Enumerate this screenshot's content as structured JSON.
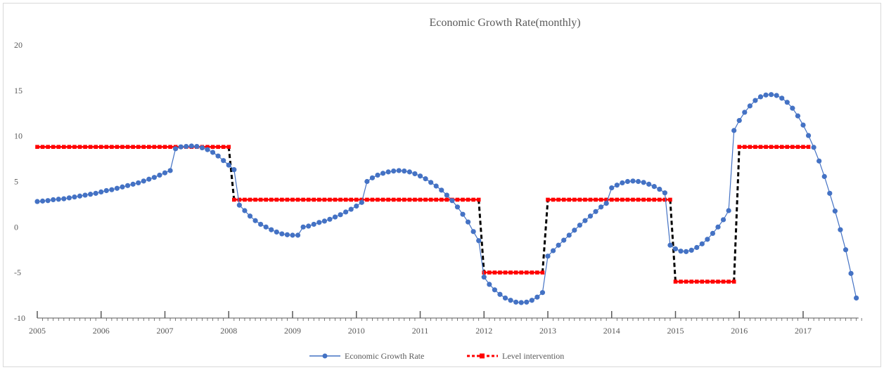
{
  "chart_data": {
    "type": "line",
    "title": "Economic Growth Rate(monthly)",
    "xlabel": "",
    "ylabel": "",
    "ylim": [
      -10,
      20
    ],
    "yticks": [
      20,
      15,
      10,
      5,
      0,
      -5,
      -10
    ],
    "xtick_labels": [
      "2005",
      "2006",
      "2007",
      "2008",
      "2009",
      "2010",
      "2011",
      "2012",
      "2013",
      "2014",
      "2015",
      "2016",
      "2017"
    ],
    "xlim": [
      2005.0,
      2018.0
    ],
    "grid": false,
    "legend_position": "bottom",
    "series": [
      {
        "name": "Economic Growth Rate",
        "color": "#4472C4",
        "marker": "circle",
        "values": [
          2.8,
          2.85,
          2.9,
          3.0,
          3.05,
          3.1,
          3.2,
          3.3,
          3.4,
          3.5,
          3.6,
          3.7,
          3.85,
          4.0,
          4.1,
          4.25,
          4.4,
          4.55,
          4.7,
          4.85,
          5.05,
          5.25,
          5.45,
          5.7,
          5.95,
          6.2,
          8.6,
          8.8,
          8.85,
          8.9,
          8.85,
          8.7,
          8.5,
          8.2,
          7.8,
          7.3,
          6.8,
          6.3,
          2.4,
          1.8,
          1.2,
          0.7,
          0.3,
          0.0,
          -0.3,
          -0.55,
          -0.75,
          -0.85,
          -0.9,
          -0.9,
          0.0,
          0.1,
          0.3,
          0.5,
          0.65,
          0.85,
          1.1,
          1.35,
          1.65,
          1.95,
          2.3,
          2.7,
          5.0,
          5.4,
          5.7,
          5.9,
          6.05,
          6.15,
          6.2,
          6.15,
          6.05,
          5.85,
          5.6,
          5.3,
          4.9,
          4.5,
          4.05,
          3.5,
          2.9,
          2.2,
          1.4,
          0.55,
          -0.5,
          -1.5,
          -5.5,
          -6.3,
          -6.9,
          -7.4,
          -7.8,
          -8.05,
          -8.25,
          -8.3,
          -8.25,
          -8.05,
          -7.7,
          -7.2,
          -3.2,
          -2.6,
          -2.0,
          -1.45,
          -0.9,
          -0.35,
          0.2,
          0.7,
          1.2,
          1.7,
          2.2,
          2.6,
          4.3,
          4.6,
          4.85,
          5.0,
          5.05,
          5.0,
          4.9,
          4.7,
          4.45,
          4.15,
          3.75,
          -2.0,
          -2.4,
          -2.65,
          -2.7,
          -2.55,
          -2.25,
          -1.85,
          -1.35,
          -0.7,
          0.0,
          0.8,
          1.8,
          10.6,
          11.7,
          12.6,
          13.3,
          13.9,
          14.3,
          14.5,
          14.55,
          14.45,
          14.15,
          13.7,
          13.05,
          12.2,
          11.2,
          10.05,
          8.75,
          7.25,
          5.55,
          3.7,
          1.75,
          -0.3,
          -2.5,
          -5.1,
          -7.8
        ]
      },
      {
        "name": "Level intervention",
        "color": "#FF0000",
        "connector_color": "#000000",
        "marker": "square",
        "segments": [
          {
            "start_month": 0,
            "end_month": 36,
            "value": 8.8
          },
          {
            "start_month": 37,
            "end_month": 83,
            "value": 3.0
          },
          {
            "start_month": 84,
            "end_month": 95,
            "value": -5.0
          },
          {
            "start_month": 96,
            "end_month": 119,
            "value": 3.0
          },
          {
            "start_month": 120,
            "end_month": 131,
            "value": -6.0
          },
          {
            "start_month": 132,
            "end_month": 145,
            "value": 8.8
          }
        ]
      }
    ]
  }
}
